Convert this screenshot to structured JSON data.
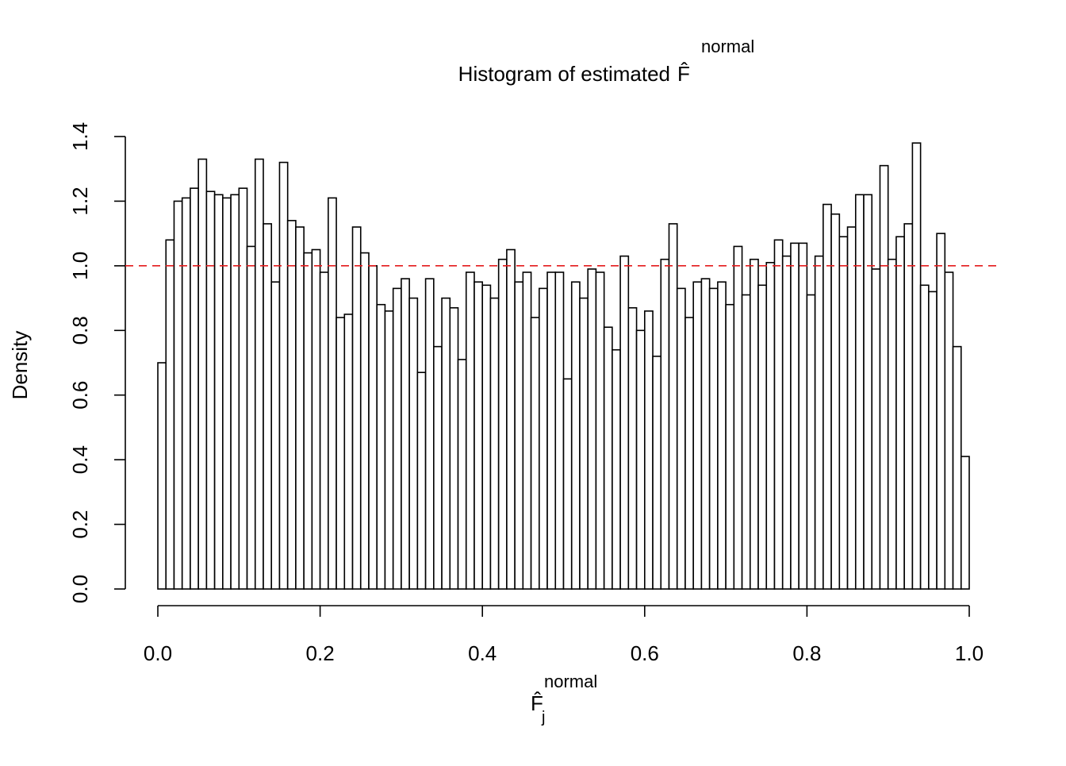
{
  "chart_data": {
    "type": "histogram",
    "title": "Histogram of estimated",
    "title_symbol": "F̂",
    "title_superscript": "normal",
    "xlabel": "F̂",
    "xlabel_superscript": "normal",
    "xlabel_subscript": "j",
    "ylabel": "Density",
    "bins": [
      0,
      0.01,
      0.02,
      0.03,
      0.04,
      0.05,
      0.06,
      0.07,
      0.08,
      0.09,
      0.1,
      0.11,
      0.12,
      0.13,
      0.14,
      0.15,
      0.16,
      0.17,
      0.18,
      0.19,
      0.2,
      0.21,
      0.22,
      0.23,
      0.24,
      0.25,
      0.26,
      0.27,
      0.28,
      0.29,
      0.3,
      0.31,
      0.32,
      0.33,
      0.34,
      0.35,
      0.36,
      0.37,
      0.38,
      0.39,
      0.4,
      0.41,
      0.42,
      0.43,
      0.44,
      0.45,
      0.46,
      0.47,
      0.48,
      0.49,
      0.5,
      0.51,
      0.52,
      0.53,
      0.54,
      0.55,
      0.56,
      0.57,
      0.58,
      0.59,
      0.6,
      0.61,
      0.62,
      0.63,
      0.64,
      0.65,
      0.66,
      0.67,
      0.68,
      0.69,
      0.7,
      0.71,
      0.72,
      0.73,
      0.74,
      0.75,
      0.76,
      0.77,
      0.78,
      0.79,
      0.8,
      0.81,
      0.82,
      0.83,
      0.84,
      0.85,
      0.86,
      0.87,
      0.88,
      0.89,
      0.9,
      0.91,
      0.92,
      0.93,
      0.94,
      0.95,
      0.96,
      0.97,
      0.98,
      0.99,
      1
    ],
    "values": [
      0.7,
      1.08,
      1.2,
      1.21,
      1.24,
      1.33,
      1.23,
      1.22,
      1.21,
      1.22,
      1.24,
      1.06,
      1.33,
      1.13,
      0.95,
      1.32,
      1.14,
      1.12,
      1.04,
      1.05,
      0.98,
      1.21,
      0.84,
      0.85,
      1.12,
      1.04,
      1.0,
      0.88,
      0.86,
      0.93,
      0.96,
      0.9,
      0.67,
      0.96,
      0.75,
      0.9,
      0.87,
      0.71,
      0.98,
      0.95,
      0.94,
      0.9,
      1.02,
      1.05,
      0.95,
      0.98,
      0.84,
      0.93,
      0.98,
      0.98,
      0.65,
      0.95,
      0.9,
      0.99,
      0.98,
      0.81,
      0.74,
      1.03,
      0.87,
      0.8,
      0.86,
      0.72,
      1.02,
      1.13,
      0.93,
      0.84,
      0.95,
      0.96,
      0.93,
      0.95,
      0.88,
      1.06,
      0.91,
      1.02,
      0.94,
      1.01,
      1.08,
      1.03,
      1.07,
      1.07,
      0.91,
      1.03,
      1.19,
      1.16,
      1.09,
      1.12,
      1.22,
      1.22,
      0.99,
      1.31,
      1.02,
      1.09,
      1.13,
      1.38,
      0.94,
      0.92,
      1.1,
      0.98,
      0.75,
      0.41
    ],
    "color": "#ffffff",
    "edgecolor": "#000000",
    "xlim": [
      0,
      1
    ],
    "xticks": [
      {
        "value": 0,
        "label": "0.0"
      },
      0.2,
      0.4,
      0.6,
      0.8,
      {
        "value": 1,
        "label": "1.0"
      }
    ],
    "ylim": [
      0,
      1.4
    ],
    "yticks": [
      {
        "value": 0,
        "label": "0.0"
      },
      0.2,
      0.4,
      0.6,
      0.8,
      {
        "value": 1,
        "label": "1.0"
      },
      1.2,
      1.4
    ],
    "reference_line": {
      "value": 1,
      "color": "#e41a1c",
      "style": "dashed"
    },
    "grid": false
  }
}
